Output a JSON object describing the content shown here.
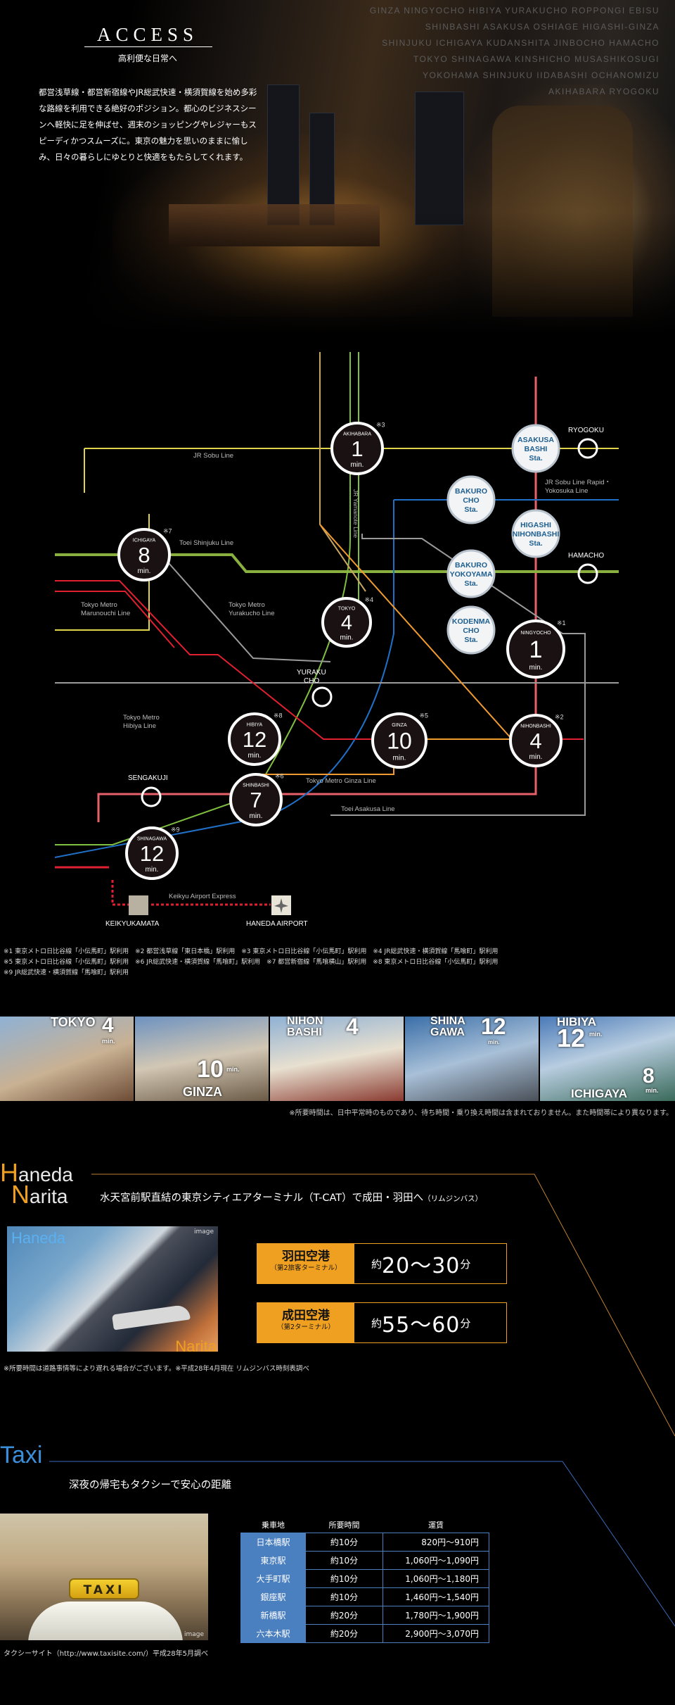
{
  "header": {
    "stations": [
      "GINZA NINGYOCHO HIBIYA YURAKUCHO ROPPONGI EBISU",
      "SHINBASHI ASAKUSA OSHIAGE HIGASHI-GINZA",
      "SHINJUKU ICHIGAYA KUDANSHITA JINBOCHO HAMACHO",
      "TOKYO SHINAGAWA KINSHICHO MUSASHIKOSUGI",
      "YOKOHAMA SHINJUKU IIDABASHI OCHANOMIZU",
      "AKIHABARA RYOGOKU"
    ],
    "title": "ACCESS",
    "subtitle": "高利便な日常へ",
    "lead": "都営浅草線・都営新宿線やJR総武快速・横須賀線を始め多彩な路線を利用できる絶好のポジション。都心のビジネスシーンへ軽快に足を伸ばせ、週末のショッピングやレジャーもスピーディかつスムーズに。東京の魅力を思いのままに愉しみ、日々の暮らしにゆとりと快適をもたらしてくれます。"
  },
  "map": {
    "unit": "min.",
    "colors": {
      "asakusa": "#e8606a",
      "jr_sobu": "#e0d54a",
      "shinjuku": "#8ab040",
      "hibiya": "#9a9a9a",
      "yurakucho": "#c8a560",
      "ginza": "#f09a30",
      "marunouchi": "#e02030",
      "yamanote": "#80c040",
      "keihin": "#2070c8",
      "keikyu": "#e02030",
      "yokosuka": "#2a6ab8",
      "rapid": "#4aa0e0"
    },
    "main_stations": [
      {
        "name": "AKIHABARA",
        "min": "1",
        "note": "※3"
      },
      {
        "name": "ICHIGAYA",
        "min": "8",
        "note": "※7"
      },
      {
        "name": "TOKYO",
        "min": "4",
        "note": "※4"
      },
      {
        "name": "NINGYOCHO",
        "min": "1",
        "note": "※1"
      },
      {
        "name": "HIBIYA",
        "min": "12",
        "note": "※8"
      },
      {
        "name": "GINZA",
        "min": "10",
        "note": "※5"
      },
      {
        "name": "NIHONBASHI",
        "min": "4",
        "note": "※2"
      },
      {
        "name": "SHINBASHI",
        "min": "7",
        "note": "※6"
      },
      {
        "name": "SHINAGAWA",
        "min": "12",
        "note": "※9"
      }
    ],
    "local_stations": [
      {
        "l1": "ASAKUSA",
        "l2": "BASHI",
        "l3": "Sta."
      },
      {
        "l1": "BAKURO",
        "l2": "CHO",
        "l3": "Sta."
      },
      {
        "l1": "HIGASHI",
        "l2": "NIHONBASHI",
        "l3": "Sta."
      },
      {
        "l1": "BAKURO",
        "l2": "YOKOYAMA",
        "l3": "Sta."
      },
      {
        "l1": "KODENMA",
        "l2": "CHO",
        "l3": "Sta."
      }
    ],
    "small_stations": {
      "ryogoku": "RYOGOKU",
      "hamacho": "HAMACHO",
      "yurakucho1": "YURAKU",
      "yurakucho2": "CHO",
      "sengakuji": "SENGAKUJI",
      "keikyukamata": "KEIKYUKAMATA",
      "haneda": "HANEDA AIRPORT"
    },
    "line_labels": {
      "jr_sobu": "JR Sobu Line",
      "jr_rapid1": "JR Sobu Line Rapid・",
      "jr_rapid2": "Yokosuka Line",
      "shinjuku": "Toei Shinjuku Line",
      "marunouchi1": "Tokyo Metro",
      "marunouchi2": "Marunouchi Line",
      "yurakucho1": "Tokyo Metro",
      "yurakucho2": "Yurakucho Line",
      "hibiya1": "Tokyo Metro",
      "hibiya2": "Hibiya Line",
      "ginza": "Tokyo Metro Ginza Line",
      "asakusa": "Toei Asakusa Line",
      "keikyu": "Keikyu Airport Express",
      "yamanote": "JR Yamanote Line"
    }
  },
  "notes": [
    "※1 東京メトロ日比谷線「小伝馬町」駅利用　※2 都営浅草線「東日本橋」駅利用　※3 東京メトロ日比谷線「小伝馬町」駅利用　※4 JR総武快速・横須賀線「馬喰町」駅利用",
    "※5 東京メトロ日比谷線「小伝馬町」駅利用　※6 JR総武快速・横須賀線「馬喰町」駅利用　※7 都営新宿線「馬喰横山」駅利用　※8 東京メトロ日比谷線「小伝馬町」駅利用",
    "※9 JR総武快速・横須賀線「馬喰町」駅利用"
  ],
  "strip": {
    "panels": [
      {
        "a": "TOKYO",
        "b": "4",
        "c": "min."
      },
      {
        "a": "10",
        "b": "min.",
        "c": "GINZA"
      },
      {
        "a": "NIHON",
        "b": "BASHI",
        "c": "4"
      },
      {
        "a": "SHINA",
        "b": "GAWA",
        "c": "12",
        "d": "min."
      },
      {
        "a": "HIBIYA",
        "b": "12",
        "c": "min.",
        "d": "ICHIGAYA",
        "e": "8",
        "f": "min."
      }
    ],
    "note": "※所要時間は、日中平常時のものであり、待ち時間・乗り換え時間は含まれておりません。また時間帯により異なります。"
  },
  "airport": {
    "title_h": "H",
    "title_h_rest": "aneda",
    "title_n": "N",
    "title_n_rest": "arita",
    "subtitle": "水天宮前駅直結の東京シティエアターミナル（T-CAT）で成田・羽田へ",
    "subtitle_small": "（リムジンバス）",
    "image_label_haneda": "Haneda",
    "image_label_narita": "Narita",
    "image_tag": "image",
    "fares": [
      {
        "name": "羽田空港",
        "terminal": "（第2旅客ターミナル）",
        "prefix": "約",
        "time": "20〜30",
        "suffix": "分"
      },
      {
        "name": "成田空港",
        "terminal": "（第2ターミナル）",
        "prefix": "約",
        "time": "55〜60",
        "suffix": "分"
      }
    ],
    "note": "※所要時間は道路事情等により遅れる場合がございます。※平成28年4月現在 リムジンバス時刻表調べ"
  },
  "taxi": {
    "title_t": "T",
    "title_rest": "axi",
    "subtitle": "深夜の帰宅もタクシーで安心の距離",
    "sign": "TAXI",
    "image_tag": "image",
    "headers": [
      "乗車地",
      "所要時間",
      "運賃"
    ],
    "rows": [
      {
        "station": "日本橋駅",
        "time": "約10分",
        "fare": "820円〜910円"
      },
      {
        "station": "東京駅",
        "time": "約10分",
        "fare": "1,060円〜1,090円"
      },
      {
        "station": "大手町駅",
        "time": "約10分",
        "fare": "1,060円〜1,180円"
      },
      {
        "station": "銀座駅",
        "time": "約10分",
        "fare": "1,460円〜1,540円"
      },
      {
        "station": "新橋駅",
        "time": "約20分",
        "fare": "1,780円〜1,900円"
      },
      {
        "station": "六本木駅",
        "time": "約20分",
        "fare": "2,900円〜3,070円"
      }
    ],
    "note": "タクシーサイト（http://www.taxisite.com/）平成28年5月調べ"
  }
}
